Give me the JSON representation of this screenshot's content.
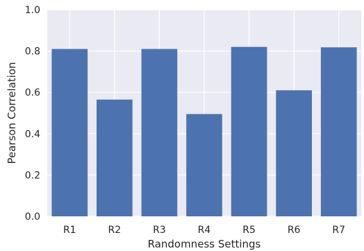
{
  "chart_data": {
    "type": "bar",
    "title": "",
    "xlabel": "Randomness Settings",
    "ylabel": "Pearson Correlation",
    "categories": [
      "R1",
      "R2",
      "R3",
      "R4",
      "R5",
      "R6",
      "R7"
    ],
    "values": [
      0.81,
      0.565,
      0.81,
      0.495,
      0.82,
      0.61,
      0.818
    ],
    "ylim": [
      0,
      1.0
    ],
    "yticks": [
      0.0,
      0.2,
      0.4,
      0.6,
      0.8,
      1.0
    ],
    "ytick_labels": [
      "0.0",
      "0.2",
      "0.4",
      "0.6",
      "0.8",
      "1.0"
    ],
    "grid": true,
    "legend": "none",
    "colors": {
      "bar": "#4c72b0",
      "background": "#eaeaf2",
      "grid": "#ffffff"
    }
  }
}
